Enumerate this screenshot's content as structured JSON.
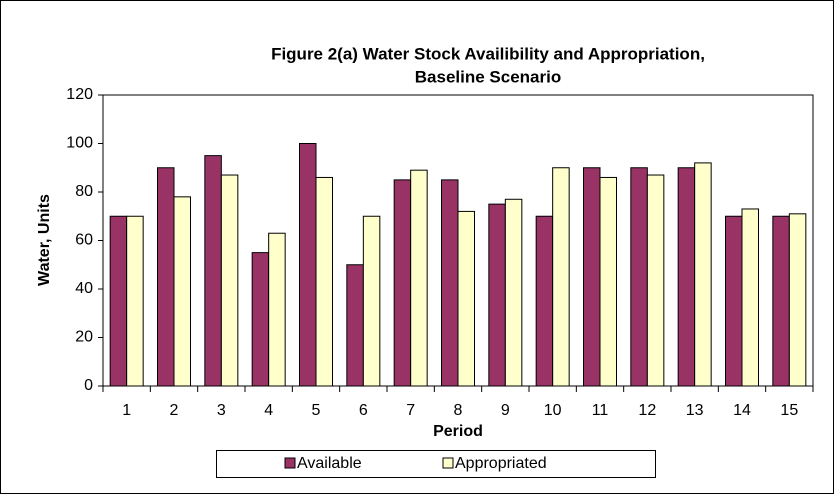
{
  "chart_data": {
    "type": "bar",
    "title": [
      "Figure 2(a) Water Stock Availibility and Appropriation,",
      "Baseline Scenario"
    ],
    "x_label": "Period",
    "y_label": "Water, Units",
    "categories": [
      "1",
      "2",
      "3",
      "4",
      "5",
      "6",
      "7",
      "8",
      "9",
      "10",
      "11",
      "12",
      "13",
      "14",
      "15"
    ],
    "series": [
      {
        "name": "Available",
        "color": "#993366",
        "values": [
          70,
          90,
          95,
          55,
          100,
          50,
          85,
          85,
          75,
          70,
          90,
          90,
          90,
          70,
          70
        ]
      },
      {
        "name": "Appropriated",
        "color": "#ffffcc",
        "values": [
          70,
          78,
          87,
          63,
          86,
          70,
          89,
          72,
          77,
          90,
          86,
          87,
          92,
          73,
          71
        ]
      }
    ],
    "ylim": [
      0,
      120
    ],
    "yticks": [
      0,
      20,
      40,
      60,
      80,
      100,
      120
    ],
    "grid": false,
    "legend": "bottom"
  }
}
